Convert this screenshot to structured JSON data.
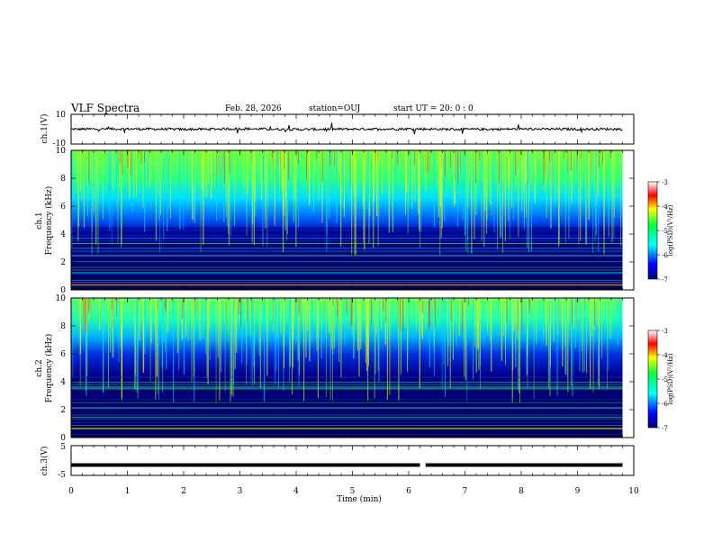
{
  "header": {
    "title": "VLF Spectra",
    "date": "Feb. 28, 2026",
    "station": "station=OUJ",
    "start_ut": "start  UT =   20: 0  : 0"
  },
  "axes": {
    "xlabel": "Time  (min)",
    "x_ticks": [
      "0",
      "1",
      "2",
      "3",
      "4",
      "5",
      "6",
      "7",
      "8",
      "9",
      "10"
    ],
    "ch1_label": "ch.1(V)",
    "ch1_ticks": [
      "10",
      "-10"
    ],
    "ch3_label": "ch.3(V)",
    "ch3_ticks": [
      "5",
      "-5"
    ],
    "spec_ch1_label": "ch.1",
    "spec_ch2_label": "ch.2",
    "freq_label": "Frequency  (kHz)",
    "freq_ticks": [
      "0",
      "2",
      "4",
      "6",
      "8",
      "10"
    ],
    "colorbar_label": "log(PSD)(V²/Hz)",
    "colorbar_ticks": [
      "-3",
      "-4",
      "-5",
      "-6",
      "-7"
    ]
  },
  "colors": {
    "spectrogram_low": "#00007f",
    "spectrogram_mid": "#00c8ff",
    "spectrogram_high": "#ff0000",
    "trace": "#000000"
  },
  "chart_data": [
    {
      "type": "line",
      "panel": "ch.1 waveform",
      "xlim": [
        0,
        10
      ],
      "ylim": [
        -10,
        10
      ],
      "x": [
        0,
        1,
        2,
        3,
        4,
        5,
        6,
        7,
        8,
        9,
        9.8
      ],
      "series": [
        {
          "values": [
            0,
            0.2,
            -0.1,
            0.3,
            -0.2,
            0.1,
            0.2,
            -0.1,
            0.1,
            0,
            0.1
          ]
        }
      ]
    },
    {
      "type": "heatmap",
      "panel": "ch.1 spectrogram",
      "xlim": [
        0,
        10
      ],
      "ylim": [
        0,
        10
      ],
      "color_scale": [
        -7,
        -3
      ]
    },
    {
      "type": "heatmap",
      "panel": "ch.2 spectrogram",
      "xlim": [
        0,
        10
      ],
      "ylim": [
        0,
        10
      ],
      "color_scale": [
        -7,
        -3
      ]
    },
    {
      "type": "line",
      "panel": "ch.3 waveform",
      "xlim": [
        0,
        10
      ],
      "ylim": [
        -5,
        5
      ],
      "x": [
        0,
        6.2,
        6.3,
        9.8
      ],
      "series": [
        {
          "values": [
            -1.5,
            -1.5,
            -1.5,
            -1.5
          ]
        }
      ]
    }
  ]
}
